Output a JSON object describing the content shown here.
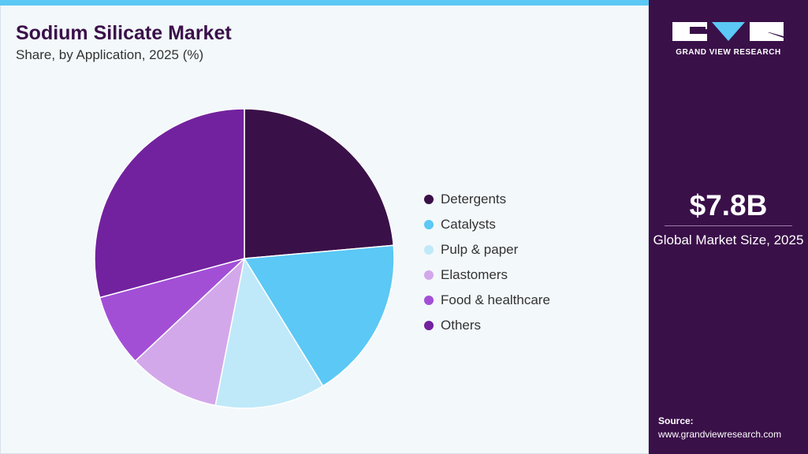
{
  "header": {
    "title": "Sodium Silicate Market",
    "subtitle": "Share, by Application, 2025 (%)"
  },
  "chart_data": {
    "type": "pie",
    "categories": [
      "Detergents",
      "Catalysts",
      "Pulp & paper",
      "Elastomers",
      "Food & healthcare",
      "Others"
    ],
    "values": [
      23.6,
      17.6,
      11.9,
      9.9,
      7.8,
      29.2
    ],
    "colors": [
      "#3a1049",
      "#5bc8f5",
      "#bfe9f9",
      "#d3a8ea",
      "#a24fd6",
      "#72229e"
    ],
    "legend_position": "right"
  },
  "sidebar": {
    "logo_text": "GRAND VIEW RESEARCH",
    "market_size": "$7.8B",
    "market_size_label": "Global Market Size, 2025",
    "source_label": "Source:",
    "source_url": "www.grandviewresearch.com"
  }
}
